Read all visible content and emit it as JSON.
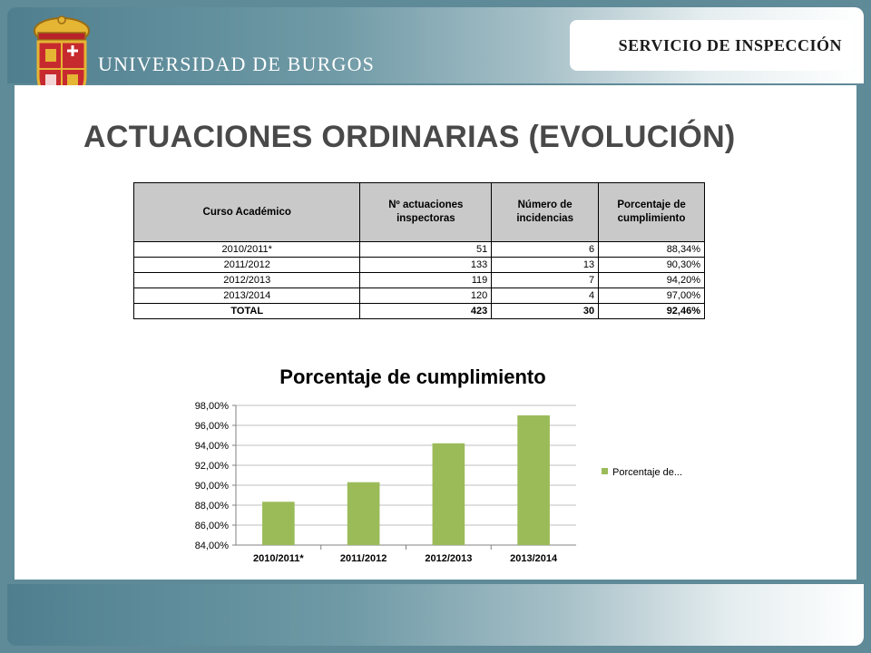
{
  "header": {
    "service_label": "SERVICIO DE INSPECCIÓN",
    "university_name": "UNIVERSIDAD DE BURGOS"
  },
  "slide_title": "ACTUACIONES ORDINARIAS (EVOLUCIÓN)",
  "table": {
    "headers": [
      "Curso Académico",
      "Nº actuaciones inspectoras",
      "Número de incidencias",
      "Porcentaje de cumplimiento"
    ],
    "rows": [
      [
        "2010/2011*",
        "51",
        "6",
        "88,34%"
      ],
      [
        "2011/2012",
        "133",
        "13",
        "90,30%"
      ],
      [
        "2012/2013",
        "119",
        "7",
        "94,20%"
      ],
      [
        "2013/2014",
        "120",
        "4",
        "97,00%"
      ]
    ],
    "total": [
      "TOTAL",
      "423",
      "30",
      "92,46%"
    ]
  },
  "chart_data": {
    "type": "bar",
    "title": "Porcentaje de cumplimiento",
    "categories": [
      "2010/2011*",
      "2011/2012",
      "2012/2013",
      "2013/2014"
    ],
    "series": [
      {
        "name": "Porcentaje de...",
        "values": [
          88.34,
          90.3,
          94.2,
          97.0
        ],
        "color": "#9bbb59"
      }
    ],
    "ylim": [
      84,
      98
    ],
    "yticks": [
      "98,00%",
      "96,00%",
      "94,00%",
      "92,00%",
      "90,00%",
      "88,00%",
      "86,00%",
      "84,00%"
    ],
    "grid": true,
    "legend": "right"
  },
  "colors": {
    "frame": "#5f8a98",
    "bar": "#9bbb59",
    "table_header": "#c9c9c9",
    "title_text": "#494949"
  }
}
